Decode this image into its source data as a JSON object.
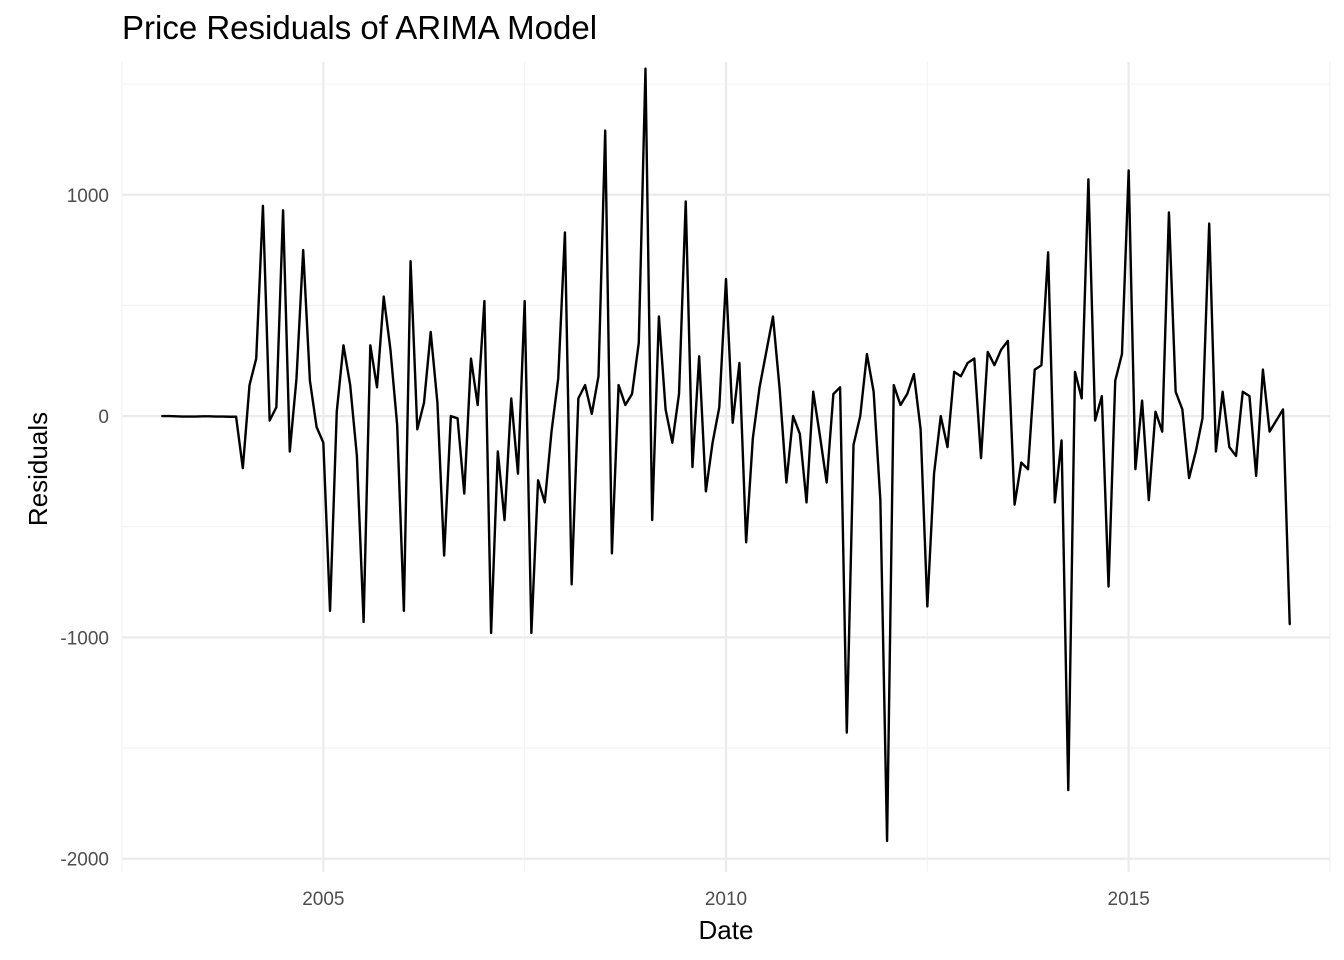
{
  "chart_data": {
    "type": "line",
    "title": "Price Residuals of ARIMA Model",
    "xlabel": "Date",
    "ylabel": "Residuals",
    "x_ticks": [
      {
        "value": 2005,
        "label": "2005"
      },
      {
        "value": 2010,
        "label": "2010"
      },
      {
        "value": 2015,
        "label": "2015"
      }
    ],
    "y_ticks": [
      {
        "value": 1000,
        "label": "1000"
      },
      {
        "value": 0,
        "label": "0"
      },
      {
        "value": -1000,
        "label": "-1000"
      },
      {
        "value": -2000,
        "label": "-2000"
      }
    ],
    "xlim": [
      2002.5,
      2017.5
    ],
    "ylim": [
      -2060,
      1600
    ],
    "grid": true,
    "legend": "none",
    "x_start": 2003.0,
    "x_step_months": 1,
    "series": [
      {
        "color": "#000000",
        "values": [
          0,
          0,
          -1,
          -2,
          -2,
          -2,
          -1,
          -1,
          -2,
          -2,
          -3,
          -3,
          -235,
          140,
          260,
          950,
          -20,
          40,
          930,
          -160,
          170,
          750,
          160,
          -50,
          -120,
          -880,
          20,
          320,
          140,
          -180,
          -930,
          320,
          130,
          540,
          300,
          -40,
          -880,
          700,
          -60,
          60,
          380,
          60,
          -630,
          0,
          -10,
          -350,
          260,
          50,
          520,
          -980,
          -160,
          -470,
          80,
          -260,
          520,
          -980,
          -290,
          -390,
          -70,
          170,
          830,
          -760,
          80,
          140,
          10,
          180,
          1290,
          -620,
          140,
          50,
          100,
          330,
          1570,
          -470,
          450,
          30,
          -120,
          100,
          970,
          -230,
          270,
          -340,
          -120,
          40,
          620,
          -30,
          240,
          -570,
          -100,
          130,
          290,
          450,
          120,
          -300,
          0,
          -80,
          -390,
          110,
          -90,
          -300,
          100,
          130,
          -1430,
          -130,
          0,
          280,
          110,
          -380,
          -1920,
          140,
          50,
          100,
          190,
          -60,
          -860,
          -260,
          0,
          -140,
          200,
          180,
          240,
          260,
          -190,
          290,
          230,
          300,
          340,
          -400,
          -210,
          -240,
          210,
          230,
          740,
          -390,
          -110,
          -1690,
          200,
          80,
          1070,
          -20,
          90,
          -770,
          160,
          280,
          1110,
          -240,
          70,
          -380,
          20,
          -70,
          920,
          110,
          30,
          -280,
          -160,
          -10,
          870,
          -160,
          110,
          -140,
          -180,
          110,
          90,
          -270,
          210,
          -70,
          -20,
          30,
          -940
        ]
      }
    ]
  }
}
